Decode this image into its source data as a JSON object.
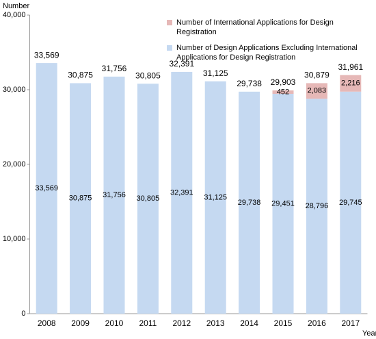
{
  "chart_data": {
    "type": "stacked_bar",
    "y_label": "Number",
    "x_label": "Year",
    "categories": [
      "2008",
      "2009",
      "2010",
      "2011",
      "2012",
      "2013",
      "2014",
      "2015",
      "2016",
      "2017"
    ],
    "series": [
      {
        "name": "Number of Design Applications Excluding International Applications for Design Registration",
        "color": "#c5d9f1",
        "values": [
          33569,
          30875,
          31756,
          30805,
          32391,
          31125,
          29738,
          29451,
          28796,
          29745
        ],
        "value_labels": [
          "33,569",
          "30,875",
          "31,756",
          "30,805",
          "32,391",
          "31,125",
          "29,738",
          "29,451",
          "28,796",
          "29,745"
        ]
      },
      {
        "name": "Number of International Applications for Design Registration",
        "color": "#e6b8b7",
        "values": [
          null,
          null,
          null,
          null,
          null,
          null,
          null,
          452,
          2083,
          2216
        ],
        "value_labels": [
          null,
          null,
          null,
          null,
          null,
          null,
          null,
          "452",
          "2,083",
          "2,216"
        ]
      }
    ],
    "totals": [
      33569,
      30875,
      31756,
      30805,
      32391,
      31125,
      29738,
      29903,
      30879,
      31961
    ],
    "total_labels": [
      "33,569",
      "30,875",
      "31,756",
      "30,805",
      "32,391",
      "31,125",
      "29,738",
      "29,903",
      "30,879",
      "31,961"
    ],
    "ylim": [
      0,
      40000
    ],
    "yticks": [
      0,
      {
        "value": 10000,
        "label": "10,000"
      },
      {
        "value": 20000,
        "label": "20,000"
      },
      {
        "value": 30000,
        "label": "30,000"
      },
      {
        "value": 40000,
        "label": "40,000"
      }
    ],
    "legend": "upper right",
    "grid": false
  }
}
